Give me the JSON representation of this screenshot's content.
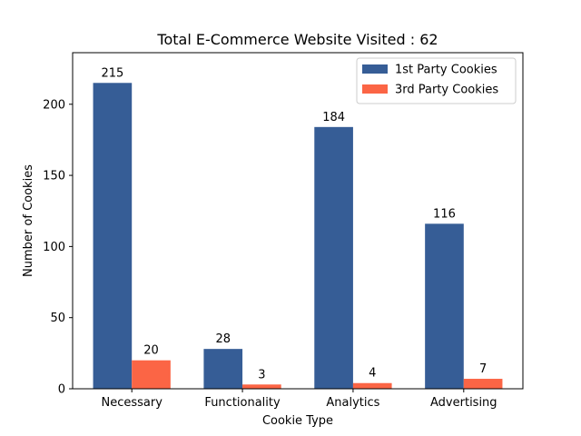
{
  "chart_data": {
    "type": "bar",
    "title": "Total E-Commerce Website Visited : 62",
    "xlabel": "Cookie Type",
    "ylabel": "Number of Cookies",
    "categories": [
      "Necessary",
      "Functionality",
      "Analytics",
      "Advertising"
    ],
    "series": [
      {
        "name": "1st Party Cookies",
        "values": [
          215,
          28,
          184,
          116
        ],
        "color": "#365d96"
      },
      {
        "name": "3rd Party Cookies",
        "values": [
          20,
          3,
          4,
          7
        ],
        "color": "#fb6545"
      }
    ],
    "ylim": [
      0,
      236.25
    ],
    "yticks": [
      0,
      50,
      100,
      150,
      200
    ],
    "legend": "top-right",
    "grid": false
  }
}
